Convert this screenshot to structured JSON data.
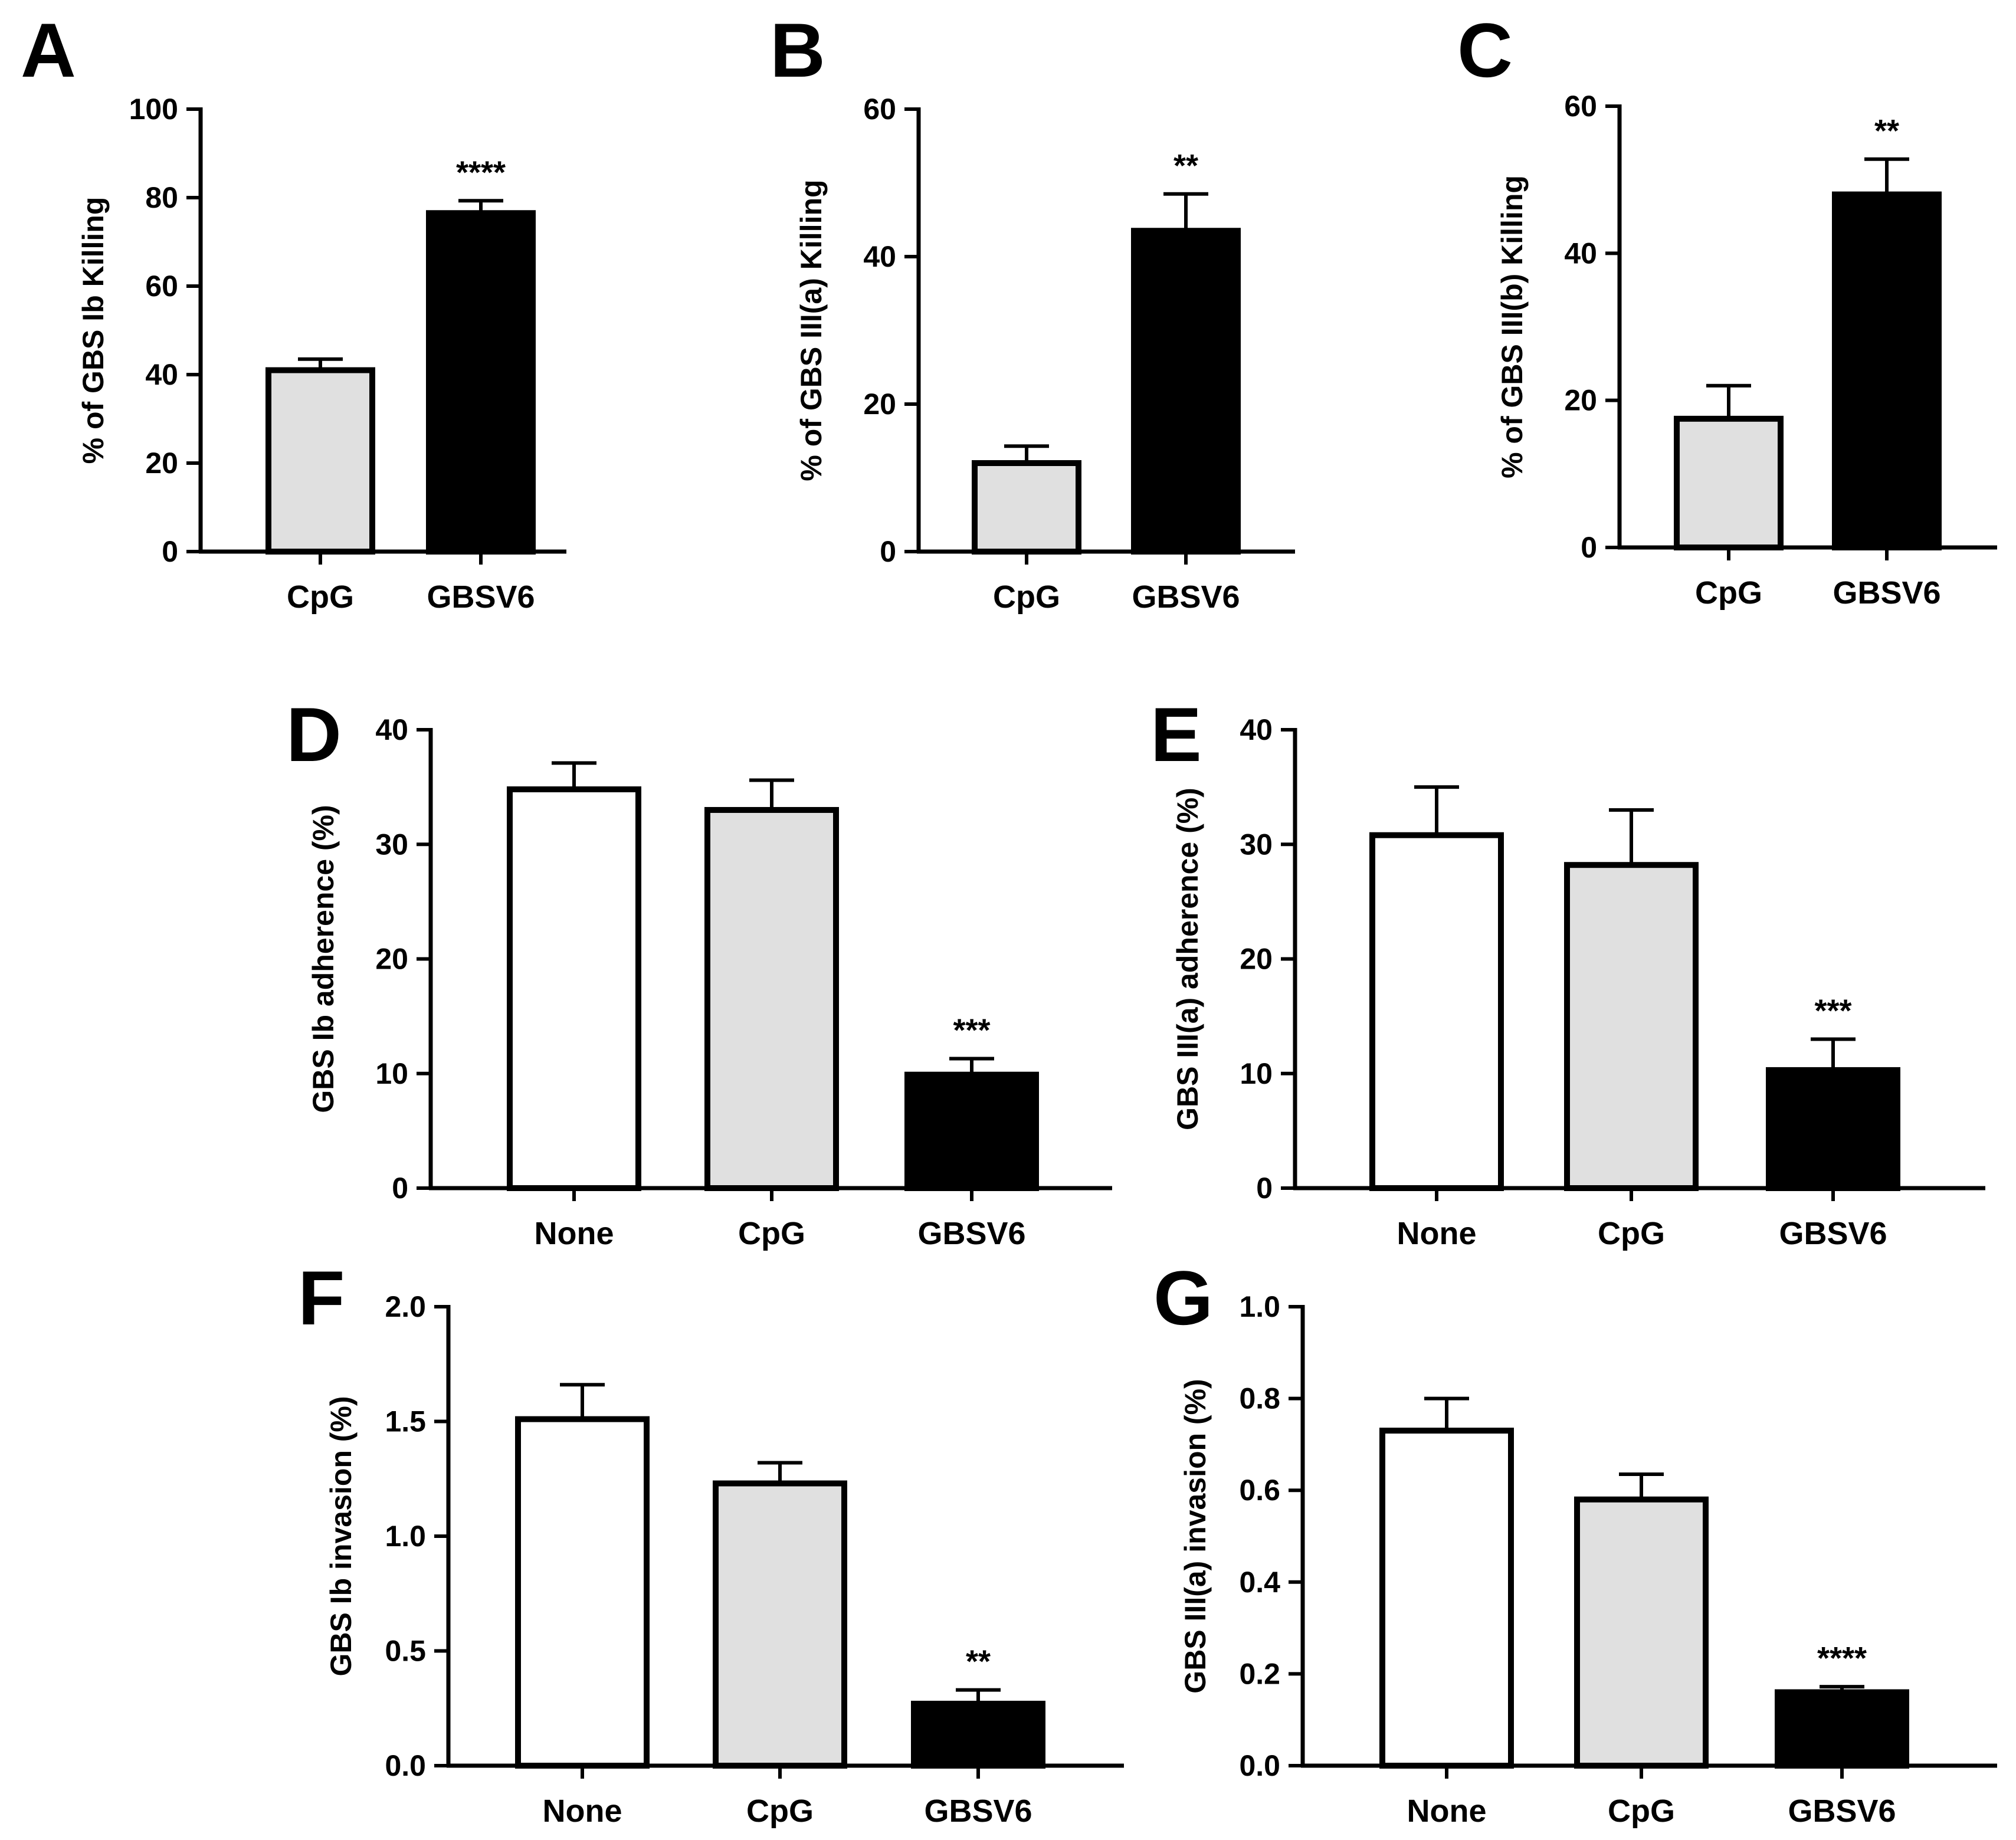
{
  "figure": {
    "colors": {
      "None": "#ffffff",
      "CpG": "#e0e0e0",
      "GBSV6": "#000000",
      "stroke": "#000000"
    }
  },
  "chart_data": [
    {
      "panel": "A",
      "type": "bar",
      "categories": [
        "CpG",
        "GBSV6"
      ],
      "values": [
        41,
        76.5
      ],
      "errors": [
        2.5,
        2.8
      ],
      "significance": [
        "",
        "****"
      ],
      "ylabel": "% of GBS Ib Killing",
      "ylim": [
        0,
        100
      ],
      "yticks": [
        0,
        20,
        40,
        60,
        80,
        100
      ],
      "ytick_labels": [
        "0",
        "20",
        "40",
        "60",
        "80",
        "100"
      ]
    },
    {
      "panel": "B",
      "type": "bar",
      "categories": [
        "CpG",
        "GBSV6"
      ],
      "values": [
        12,
        43.5
      ],
      "errors": [
        2.3,
        5.0
      ],
      "significance": [
        "",
        "**"
      ],
      "ylabel": "% of GBS III(a) Killing",
      "ylim": [
        0,
        60
      ],
      "yticks": [
        0,
        20,
        40,
        60
      ],
      "ytick_labels": [
        "0",
        "20",
        "40",
        "60"
      ]
    },
    {
      "panel": "C",
      "type": "bar",
      "categories": [
        "CpG",
        "GBSV6"
      ],
      "values": [
        17.5,
        48
      ],
      "errors": [
        4.5,
        4.8
      ],
      "significance": [
        "",
        "**"
      ],
      "ylabel": "% of GBS III(b) Killing",
      "ylim": [
        0,
        60
      ],
      "yticks": [
        0,
        20,
        40,
        60
      ],
      "ytick_labels": [
        "0",
        "20",
        "40",
        "60"
      ]
    },
    {
      "panel": "D",
      "type": "bar",
      "categories": [
        "None",
        "CpG",
        "GBSV6"
      ],
      "values": [
        34.8,
        33.0,
        9.9
      ],
      "errors": [
        2.3,
        2.6,
        1.4
      ],
      "significance": [
        "",
        "",
        "***"
      ],
      "ylabel": "GBS Ib adherence (%)",
      "ylim": [
        0,
        40
      ],
      "yticks": [
        0,
        10,
        20,
        30,
        40
      ],
      "ytick_labels": [
        "0",
        "10",
        "20",
        "30",
        "40"
      ]
    },
    {
      "panel": "E",
      "type": "bar",
      "categories": [
        "None",
        "CpG",
        "GBSV6"
      ],
      "values": [
        30.8,
        28.2,
        10.3
      ],
      "errors": [
        4.2,
        4.8,
        2.7
      ],
      "significance": [
        "",
        "",
        "***"
      ],
      "ylabel": "GBS III(a) adherence (%)",
      "ylim": [
        0,
        40
      ],
      "yticks": [
        0,
        10,
        20,
        30,
        40
      ],
      "ytick_labels": [
        "0",
        "10",
        "20",
        "30",
        "40"
      ]
    },
    {
      "panel": "F",
      "type": "bar",
      "categories": [
        "None",
        "CpG",
        "GBSV6"
      ],
      "values": [
        1.51,
        1.23,
        0.27
      ],
      "errors": [
        0.15,
        0.09,
        0.06
      ],
      "significance": [
        "",
        "",
        "**"
      ],
      "ylabel": "GBS Ib invasion (%)",
      "ylim": [
        0,
        2.0
      ],
      "yticks": [
        0,
        0.5,
        1.0,
        1.5,
        2.0
      ],
      "ytick_labels": [
        "0.0",
        "0.5",
        "1.0",
        "1.5",
        "2.0"
      ]
    },
    {
      "panel": "G",
      "type": "bar",
      "categories": [
        "None",
        "CpG",
        "GBSV6"
      ],
      "values": [
        0.73,
        0.58,
        0.16
      ],
      "errors": [
        0.07,
        0.055,
        0.012
      ],
      "significance": [
        "",
        "",
        "****"
      ],
      "ylabel": "GBS III(a) invasion (%)",
      "ylim": [
        0,
        1.0
      ],
      "yticks": [
        0,
        0.2,
        0.4,
        0.6,
        0.8,
        1.0
      ],
      "ytick_labels": [
        "0.0",
        "0.2",
        "0.4",
        "0.6",
        "0.8",
        "1.0"
      ]
    }
  ]
}
